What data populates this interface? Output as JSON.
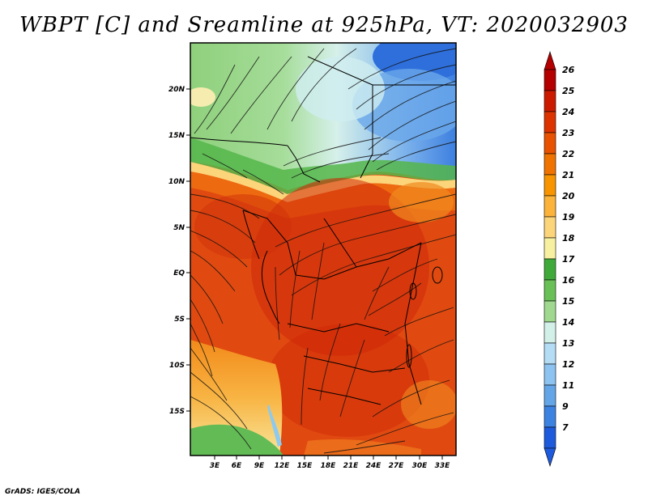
{
  "title": "WBPT [C] and Sreamline at 925hPa, VT: 2020032903",
  "footer": "GrADS: IGES/COLA",
  "map": {
    "lat_labels": [
      "20N",
      "15N",
      "10N",
      "5N",
      "EQ",
      "5S",
      "10S",
      "15S"
    ],
    "lon_labels": [
      "3E",
      "6E",
      "9E",
      "12E",
      "15E",
      "18E",
      "21E",
      "24E",
      "27E",
      "30E",
      "33E"
    ]
  },
  "colorbar": {
    "labels": [
      "26",
      "25",
      "24",
      "23",
      "22",
      "21",
      "20",
      "19",
      "18",
      "17",
      "16",
      "15",
      "14",
      "13",
      "12",
      "11",
      "9",
      "7"
    ],
    "colors": [
      "#b40000",
      "#cc1a00",
      "#dd3300",
      "#e85200",
      "#f07300",
      "#f79400",
      "#fbb33a",
      "#fcd47a",
      "#f7f0a0",
      "#3faa3a",
      "#69c057",
      "#9fd88e",
      "#d2f0e8",
      "#b4dcf5",
      "#8cc3f0",
      "#64a5e8",
      "#3c82e1",
      "#1e5adc"
    ]
  }
}
